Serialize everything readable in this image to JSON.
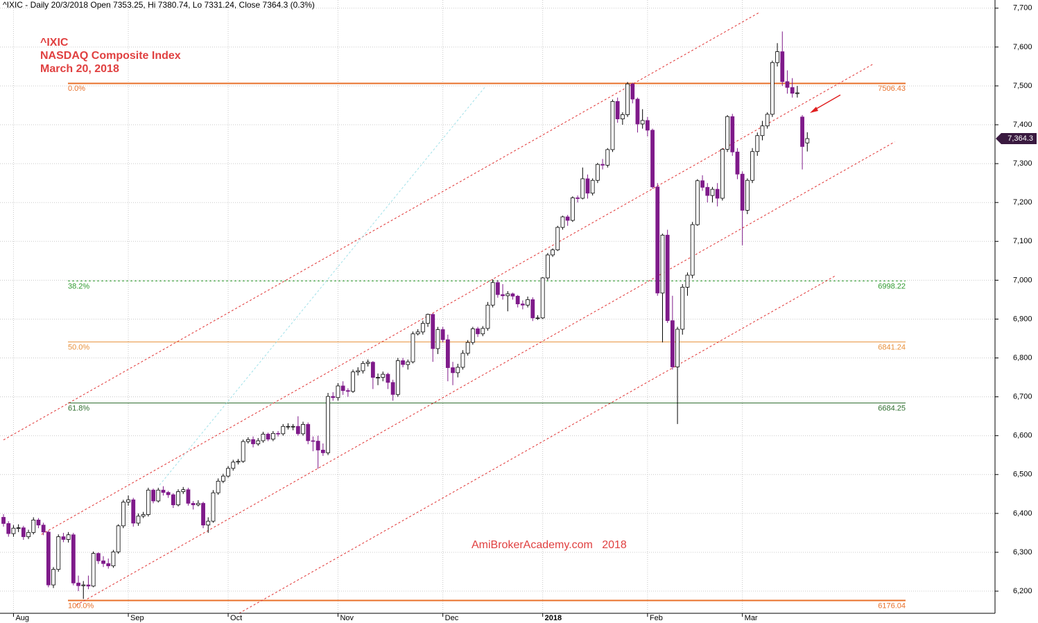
{
  "chart_data": {
    "type": "candlestick",
    "header": "^IXIC - Daily 20/3/2018 Open 7353.25, Hi 7380.74, Lo 7331.24, Close 7364.3 (0.3%)",
    "title_lines": [
      "^IXIC",
      "NASDAQ Composite Index",
      "March 20, 2018"
    ],
    "watermark": "AmiBrokerAcademy.com   2018",
    "up_color": "#ffffff",
    "down_color": "#7f1a8a",
    "grid": true,
    "xlim": [
      -0.7,
      198.6
    ],
    "ylim": [
      6143,
      7721
    ],
    "xticks": [
      {
        "value": 2,
        "label": "Aug"
      },
      {
        "value": 25,
        "label": "Sep"
      },
      {
        "value": 45,
        "label": "Oct"
      },
      {
        "value": 67,
        "label": "Nov"
      },
      {
        "value": 88,
        "label": "Dec"
      },
      {
        "value": 108,
        "label": "2018"
      },
      {
        "value": 129,
        "label": "Feb"
      },
      {
        "value": 148,
        "label": "Mar"
      }
    ],
    "yticks": [
      {
        "value": 6200,
        "label": "6,200"
      },
      {
        "value": 6300,
        "label": "6,300"
      },
      {
        "value": 6400,
        "label": "6,400"
      },
      {
        "value": 6500,
        "label": "6,500"
      },
      {
        "value": 6600,
        "label": "6,600"
      },
      {
        "value": 6700,
        "label": "6,700"
      },
      {
        "value": 6800,
        "label": "6,800"
      },
      {
        "value": 6900,
        "label": "6,900"
      },
      {
        "value": 7000,
        "label": "7,000"
      },
      {
        "value": 7100,
        "label": "7,100"
      },
      {
        "value": 7200,
        "label": "7,200"
      },
      {
        "value": 7300,
        "label": "7,300"
      },
      {
        "value": 7400,
        "label": "7,400"
      },
      {
        "value": 7500,
        "label": "7,500"
      },
      {
        "value": 7600,
        "label": "7,600"
      },
      {
        "value": 7700,
        "label": "7,700"
      }
    ],
    "fib_levels": [
      {
        "label": "0.0%",
        "value": 7506.43,
        "color": "#e8702a",
        "dash": "none",
        "width": 2
      },
      {
        "label": "38.2%",
        "value": 6998.22,
        "color": "#2e9a2e",
        "dash": "3,3",
        "width": 1
      },
      {
        "label": "50.0%",
        "value": 6841.24,
        "color": "#e8903a",
        "dash": "none",
        "width": 1
      },
      {
        "label": "61.8%",
        "value": 6684.25,
        "color": "#2e6e2e",
        "dash": "none",
        "width": 1
      },
      {
        "label": "100.0%",
        "value": 6176.04,
        "color": "#e8702a",
        "dash": "none",
        "width": 2
      }
    ],
    "trendlines": [
      {
        "color": "#e03030",
        "x": [
          0,
          151.4
        ],
        "y": [
          6589,
          7689
        ]
      },
      {
        "color": "#e03030",
        "x": [
          7.6,
          174.3
        ],
        "y": [
          6346,
          7557
        ]
      },
      {
        "color": "#e03030",
        "x": [
          14.6,
          178.5
        ],
        "y": [
          6164,
          7356
        ]
      },
      {
        "color": "#e03030",
        "x": [
          47.2,
          166.7
        ],
        "y": [
          6143,
          7012
        ]
      },
      {
        "color": "#9fe0e8",
        "x": [
          31.25,
          96.5
        ],
        "y": [
          6473,
          7498
        ]
      }
    ],
    "last_price": {
      "value": 7364.3,
      "label": "7,364.3"
    },
    "candles": [
      [
        6390,
        6398,
        6366,
        6374
      ],
      [
        6374,
        6380,
        6340,
        6348
      ],
      [
        6348,
        6370,
        6340,
        6362
      ],
      [
        6362,
        6372,
        6352,
        6363
      ],
      [
        6363,
        6368,
        6332,
        6340
      ],
      [
        6340,
        6358,
        6334,
        6351
      ],
      [
        6351,
        6390,
        6346,
        6383
      ],
      [
        6383,
        6388,
        6362,
        6370
      ],
      [
        6370,
        6376,
        6344,
        6352
      ],
      [
        6352,
        6356,
        6210,
        6216
      ],
      [
        6216,
        6262,
        6208,
        6256
      ],
      [
        6256,
        6346,
        6250,
        6340
      ],
      [
        6340,
        6350,
        6326,
        6333
      ],
      [
        6333,
        6352,
        6325,
        6345
      ],
      [
        6345,
        6350,
        6215,
        6221
      ],
      [
        6221,
        6240,
        6200,
        6214
      ],
      [
        6214,
        6226,
        6180,
        6216
      ],
      [
        6216,
        6240,
        6205,
        6213
      ],
      [
        6213,
        6302,
        6210,
        6297
      ],
      [
        6297,
        6300,
        6270,
        6278
      ],
      [
        6278,
        6290,
        6262,
        6271
      ],
      [
        6271,
        6284,
        6258,
        6265
      ],
      [
        6265,
        6306,
        6260,
        6301
      ],
      [
        6301,
        6372,
        6296,
        6368
      ],
      [
        6368,
        6435,
        6362,
        6429
      ],
      [
        6429,
        6446,
        6420,
        6435
      ],
      [
        6435,
        6440,
        6366,
        6375
      ],
      [
        6375,
        6400,
        6368,
        6393
      ],
      [
        6393,
        6404,
        6388,
        6397
      ],
      [
        6397,
        6466,
        6392,
        6460
      ],
      [
        6460,
        6464,
        6426,
        6432
      ],
      [
        6432,
        6466,
        6428,
        6460
      ],
      [
        6460,
        6470,
        6446,
        6454
      ],
      [
        6454,
        6458,
        6440,
        6448
      ],
      [
        6448,
        6452,
        6414,
        6422
      ],
      [
        6422,
        6462,
        6418,
        6456
      ],
      [
        6456,
        6468,
        6450,
        6461
      ],
      [
        6461,
        6466,
        6420,
        6426
      ],
      [
        6426,
        6432,
        6410,
        6422
      ],
      [
        6422,
        6434,
        6418,
        6426
      ],
      [
        6426,
        6430,
        6362,
        6370
      ],
      [
        6370,
        6390,
        6350,
        6380
      ],
      [
        6380,
        6460,
        6376,
        6453
      ],
      [
        6453,
        6490,
        6448,
        6483
      ],
      [
        6483,
        6502,
        6478,
        6496
      ],
      [
        6496,
        6522,
        6492,
        6516
      ],
      [
        6516,
        6538,
        6510,
        6532
      ],
      [
        6532,
        6540,
        6526,
        6534
      ],
      [
        6534,
        6590,
        6530,
        6585
      ],
      [
        6585,
        6596,
        6580,
        6590
      ],
      [
        6590,
        6598,
        6570,
        6579
      ],
      [
        6579,
        6594,
        6574,
        6587
      ],
      [
        6587,
        6610,
        6582,
        6604
      ],
      [
        6604,
        6608,
        6586,
        6591
      ],
      [
        6591,
        6612,
        6586,
        6606
      ],
      [
        6606,
        6612,
        6598,
        6605
      ],
      [
        6605,
        6630,
        6600,
        6624
      ],
      [
        6624,
        6632,
        6616,
        6624
      ],
      [
        6624,
        6630,
        6614,
        6624
      ],
      [
        6624,
        6650,
        6600,
        6605
      ],
      [
        6605,
        6636,
        6600,
        6629
      ],
      [
        6629,
        6634,
        6578,
        6587
      ],
      [
        6587,
        6598,
        6560,
        6586
      ],
      [
        6586,
        6600,
        6515,
        6563
      ],
      [
        6563,
        6580,
        6548,
        6556
      ],
      [
        6556,
        6710,
        6550,
        6701
      ],
      [
        6701,
        6712,
        6690,
        6698
      ],
      [
        6698,
        6735,
        6690,
        6728
      ],
      [
        6728,
        6740,
        6705,
        6716
      ],
      [
        6716,
        6722,
        6700,
        6714
      ],
      [
        6714,
        6770,
        6710,
        6764
      ],
      [
        6764,
        6776,
        6755,
        6767
      ],
      [
        6767,
        6792,
        6760,
        6786
      ],
      [
        6786,
        6796,
        6778,
        6789
      ],
      [
        6789,
        6792,
        6720,
        6750
      ],
      [
        6750,
        6760,
        6730,
        6750
      ],
      [
        6750,
        6765,
        6740,
        6758
      ],
      [
        6758,
        6762,
        6720,
        6737
      ],
      [
        6737,
        6744,
        6690,
        6706
      ],
      [
        6706,
        6800,
        6700,
        6793
      ],
      [
        6793,
        6800,
        6776,
        6783
      ],
      [
        6783,
        6796,
        6770,
        6790
      ],
      [
        6790,
        6868,
        6786,
        6862
      ],
      [
        6862,
        6874,
        6858,
        6867
      ],
      [
        6867,
        6896,
        6860,
        6889
      ],
      [
        6889,
        6914,
        6880,
        6912
      ],
      [
        6912,
        6915,
        6790,
        6824
      ],
      [
        6824,
        6880,
        6810,
        6873
      ],
      [
        6873,
        6880,
        6840,
        6847
      ],
      [
        6847,
        6860,
        6740,
        6775
      ],
      [
        6775,
        6790,
        6730,
        6762
      ],
      [
        6762,
        6785,
        6750,
        6776
      ],
      [
        6776,
        6820,
        6770,
        6812
      ],
      [
        6812,
        6846,
        6806,
        6840
      ],
      [
        6840,
        6880,
        6834,
        6875
      ],
      [
        6875,
        6880,
        6854,
        6862
      ],
      [
        6862,
        6882,
        6856,
        6876
      ],
      [
        6876,
        6944,
        6870,
        6936
      ],
      [
        6936,
        7002,
        6930,
        6994
      ],
      [
        6994,
        7000,
        6955,
        6963
      ],
      [
        6963,
        6990,
        6950,
        6960
      ],
      [
        6960,
        6972,
        6920,
        6965
      ],
      [
        6965,
        6968,
        6950,
        6959
      ],
      [
        6959,
        6962,
        6930,
        6939
      ],
      [
        6939,
        6948,
        6925,
        6936
      ],
      [
        6936,
        6958,
        6930,
        6950
      ],
      [
        6950,
        6956,
        6895,
        6903
      ],
      [
        6903,
        6910,
        6898,
        6903
      ],
      [
        6903,
        7008,
        6900,
        7006
      ],
      [
        7006,
        7070,
        7000,
        7065
      ],
      [
        7065,
        7082,
        7060,
        7078
      ],
      [
        7078,
        7140,
        7075,
        7136
      ],
      [
        7136,
        7166,
        7130,
        7163
      ],
      [
        7163,
        7168,
        7140,
        7154
      ],
      [
        7154,
        7216,
        7150,
        7212
      ],
      [
        7212,
        7218,
        7200,
        7211
      ],
      [
        7211,
        7290,
        7208,
        7261
      ],
      [
        7261,
        7272,
        7210,
        7224
      ],
      [
        7224,
        7262,
        7218,
        7257
      ],
      [
        7257,
        7302,
        7250,
        7298
      ],
      [
        7298,
        7312,
        7285,
        7296
      ],
      [
        7296,
        7340,
        7290,
        7336
      ],
      [
        7336,
        7465,
        7330,
        7460
      ],
      [
        7460,
        7470,
        7405,
        7415
      ],
      [
        7415,
        7432,
        7400,
        7426
      ],
      [
        7426,
        7510,
        7420,
        7505
      ],
      [
        7505,
        7508,
        7455,
        7466
      ],
      [
        7466,
        7470,
        7380,
        7402
      ],
      [
        7402,
        7440,
        7390,
        7411
      ],
      [
        7411,
        7420,
        7370,
        7386
      ],
      [
        7386,
        7390,
        7235,
        7240
      ],
      [
        7240,
        7250,
        6960,
        6967
      ],
      [
        6967,
        7120,
        6840,
        7116
      ],
      [
        7116,
        7130,
        6890,
        6896
      ],
      [
        6896,
        6960,
        6770,
        6777
      ],
      [
        6777,
        6880,
        6630,
        6874
      ],
      [
        6874,
        6990,
        6860,
        6982
      ],
      [
        6982,
        7020,
        6960,
        7013
      ],
      [
        7013,
        7150,
        7005,
        7143
      ],
      [
        7143,
        7260,
        7140,
        7256
      ],
      [
        7256,
        7270,
        7230,
        7239
      ],
      [
        7239,
        7250,
        7200,
        7218
      ],
      [
        7218,
        7240,
        7200,
        7234
      ],
      [
        7234,
        7250,
        7190,
        7211
      ],
      [
        7211,
        7340,
        7205,
        7337
      ],
      [
        7337,
        7425,
        7330,
        7421
      ],
      [
        7421,
        7428,
        7320,
        7330
      ],
      [
        7330,
        7340,
        7260,
        7273
      ],
      [
        7273,
        7280,
        7090,
        7180
      ],
      [
        7180,
        7262,
        7170,
        7257
      ],
      [
        7257,
        7340,
        7250,
        7331
      ],
      [
        7331,
        7380,
        7320,
        7372
      ],
      [
        7372,
        7410,
        7360,
        7397
      ],
      [
        7397,
        7432,
        7390,
        7427
      ],
      [
        7427,
        7565,
        7420,
        7560
      ],
      [
        7560,
        7610,
        7550,
        7588
      ],
      [
        7588,
        7640,
        7500,
        7511
      ],
      [
        7511,
        7540,
        7480,
        7496
      ],
      [
        7496,
        7520,
        7470,
        7481
      ],
      [
        7481,
        7500,
        7470,
        7482
      ],
      [
        7420,
        7425,
        7285,
        7344
      ],
      [
        7353.25,
        7380.74,
        7331.24,
        7364.3
      ]
    ]
  }
}
